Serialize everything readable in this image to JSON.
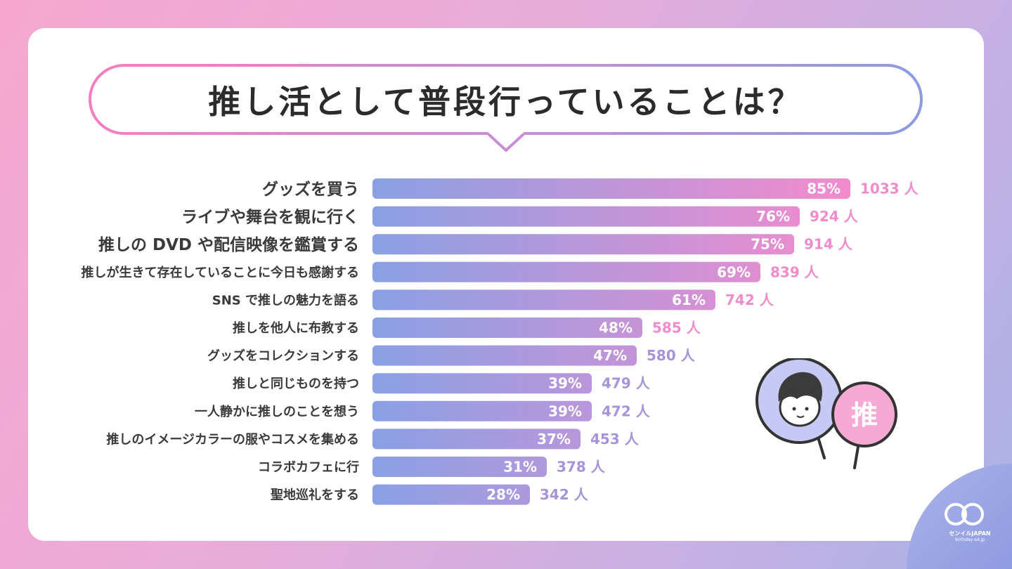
{
  "title": "推し活として普段行っていることは？",
  "colors": {
    "bar_start": "#8aa0e4",
    "bar_end": "#f28bcd",
    "count_pink": "#ef8cc9",
    "count_purple": "#a793d8"
  },
  "chart_data": {
    "type": "bar",
    "orientation": "horizontal",
    "title": "推し活として普段行っていることは？",
    "xlabel": "",
    "ylabel": "",
    "xlim": [
      0,
      100
    ],
    "unit_percent": "%",
    "unit_count": "人",
    "categories": [
      "グッズを買う",
      "ライブや舞台を観に行く",
      "推しの DVD や配信映像を鑑賞する",
      "推しが生きて存在していることに今日も感謝する",
      "SNS で推しの魅力を語る",
      "推しを他人に布教する",
      "グッズをコレクションする",
      "推しと同じものを持つ",
      "一人静かに推しのことを想う",
      "推しのイメージカラーの服やコスメを集める",
      "コラボカフェに行",
      "聖地巡礼をする"
    ],
    "values": [
      85,
      76,
      75,
      69,
      61,
      48,
      47,
      39,
      39,
      37,
      31,
      28
    ],
    "percent_labels": [
      "85%",
      "76%",
      "75%",
      "69%",
      "61%",
      "48%",
      "47%",
      "39%",
      "39%",
      "37%",
      "31%",
      "28%"
    ],
    "counts": [
      1033,
      924,
      914,
      839,
      742,
      585,
      580,
      479,
      472,
      453,
      378,
      342
    ],
    "count_labels": [
      "1033 人",
      "924 人",
      "914 人",
      "839 人",
      "742 人",
      "585 人",
      "580 人",
      "479 人",
      "472 人",
      "453 人",
      "378 人",
      "342 人"
    ]
  },
  "brand": {
    "logo_text": "センイルJAPAN",
    "sub_text": "birthday-ad.jp"
  },
  "illustration": {
    "fan_text": "推"
  }
}
